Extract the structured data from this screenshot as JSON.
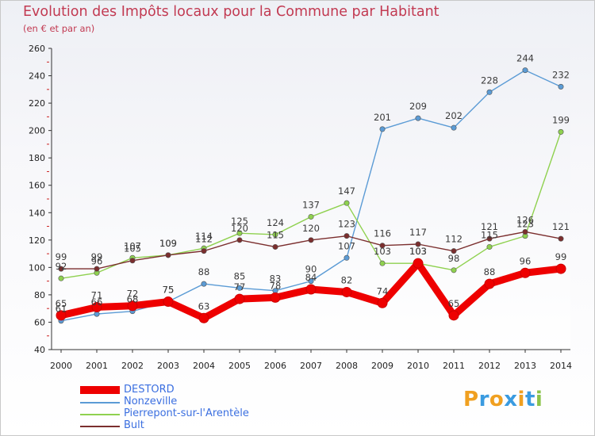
{
  "header": {
    "title": "Evolution des Impôts locaux pour la Commune par Habitant",
    "subtitle": "(en € et par an)"
  },
  "logo": {
    "letters": [
      "P",
      "r",
      "o",
      "x",
      "i",
      "t",
      "i"
    ],
    "colors": [
      "#f0a020",
      "#3a9be0",
      "#f0a020",
      "#3a9be0",
      "#f0a020",
      "#3a9be0",
      "#8bc34a"
    ]
  },
  "chart_data": {
    "type": "line",
    "x": [
      "2000",
      "2001",
      "2002",
      "2003",
      "2004",
      "2005",
      "2006",
      "2007",
      "2008",
      "2009",
      "2010",
      "2011",
      "2012",
      "2013",
      "2014"
    ],
    "ylim": [
      40,
      260
    ],
    "yticks": [
      40,
      60,
      80,
      100,
      120,
      140,
      160,
      180,
      200,
      220,
      240,
      260
    ],
    "grid": false,
    "legend_position": "bottom-left",
    "series": [
      {
        "name": "DESTORD",
        "color": "#ee0000",
        "values": [
          65,
          71,
          72,
          75,
          63,
          77,
          78,
          84,
          82,
          74,
          103,
          65,
          88,
          96,
          99
        ]
      },
      {
        "name": "Nonzeville",
        "color": "#5b9bd5",
        "values": [
          61,
          66,
          68,
          75,
          88,
          85,
          83,
          90,
          107,
          201,
          209,
          202,
          228,
          244,
          232
        ]
      },
      {
        "name": "Pierrepont-sur-l'Arentèle",
        "color": "#8fd14f",
        "values": [
          92,
          96,
          107,
          109,
          114,
          125,
          124,
          137,
          147,
          103,
          103,
          98,
          115,
          123,
          199
        ]
      },
      {
        "name": "Bult",
        "color": "#7b2e2e",
        "values": [
          99,
          99,
          105,
          109,
          112,
          120,
          115,
          120,
          123,
          116,
          117,
          112,
          121,
          126,
          121
        ]
      }
    ]
  }
}
